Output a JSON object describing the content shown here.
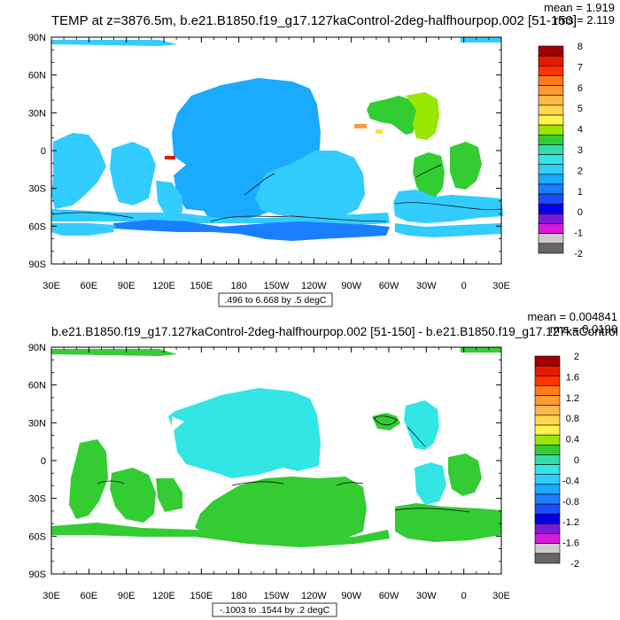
{
  "chart_data": [
    {
      "type": "contour-map",
      "title": "TEMP at z=3876.5m, b.e21.B1850.f19_g17.127kaControl-2deg-halfhourpop.002 [51-150]",
      "stats": {
        "mean": "mean = 1.919",
        "rms": "rms = 2.119"
      },
      "yticks": [
        "90N",
        "60N",
        "30N",
        "0",
        "30S",
        "60S",
        "90S"
      ],
      "xticks": [
        "30E",
        "60E",
        "90E",
        "120E",
        "150E",
        "180",
        "150W",
        "120W",
        "90W",
        "60W",
        "30W",
        "0",
        "30E"
      ],
      "contour_info": ".496 to 6.668 by .5 degC",
      "colorbar": {
        "labels": [
          "8",
          "7",
          "6",
          "5",
          "4",
          "3",
          "2",
          "1",
          "0",
          "-1",
          "-2"
        ],
        "colors": [
          "#a00000",
          "#e61a00",
          "#ff3300",
          "#ff7a1a",
          "#ff9933",
          "#ffb84d",
          "#ffd94d",
          "#fff24d",
          "#99e600",
          "#33cc33",
          "#33ddaa",
          "#33e6e6",
          "#33ccff",
          "#1aaaff",
          "#1a7fff",
          "#1a4dff",
          "#0000e6",
          "#7a1ad9",
          "#d91ad9",
          "#cccccc",
          "#666666"
        ]
      }
    },
    {
      "type": "contour-map",
      "title": "b.e21.B1850.f19_g17.127kaControl-2deg-halfhourpop.002 [51-150] - b.e21.B1850.f19_g17.127kaControl",
      "stats": {
        "mean": "mean = 0.004841",
        "rms": "rms = 0.0196"
      },
      "yticks": [
        "90N",
        "60N",
        "30N",
        "0",
        "30S",
        "60S",
        "90S"
      ],
      "xticks": [
        "30E",
        "60E",
        "90E",
        "120E",
        "150E",
        "180",
        "150W",
        "120W",
        "90W",
        "60W",
        "30W",
        "0",
        "30E"
      ],
      "contour_info": "-.1003 to .1544 by .2 degC",
      "colorbar": {
        "labels": [
          "2",
          "1.6",
          "1.2",
          "0.8",
          "0.4",
          "0",
          "-0.4",
          "-0.8",
          "-1.2",
          "-1.6",
          "-2"
        ],
        "colors": [
          "#a00000",
          "#e61a00",
          "#ff3300",
          "#ff7a1a",
          "#ff9933",
          "#ffb84d",
          "#ffd94d",
          "#fff24d",
          "#99e600",
          "#33cc33",
          "#33ddaa",
          "#33e6e6",
          "#33ccff",
          "#1aaaff",
          "#1a7fff",
          "#1a4dff",
          "#0000e6",
          "#7a1ad9",
          "#d91ad9",
          "#cccccc",
          "#666666"
        ]
      }
    }
  ]
}
